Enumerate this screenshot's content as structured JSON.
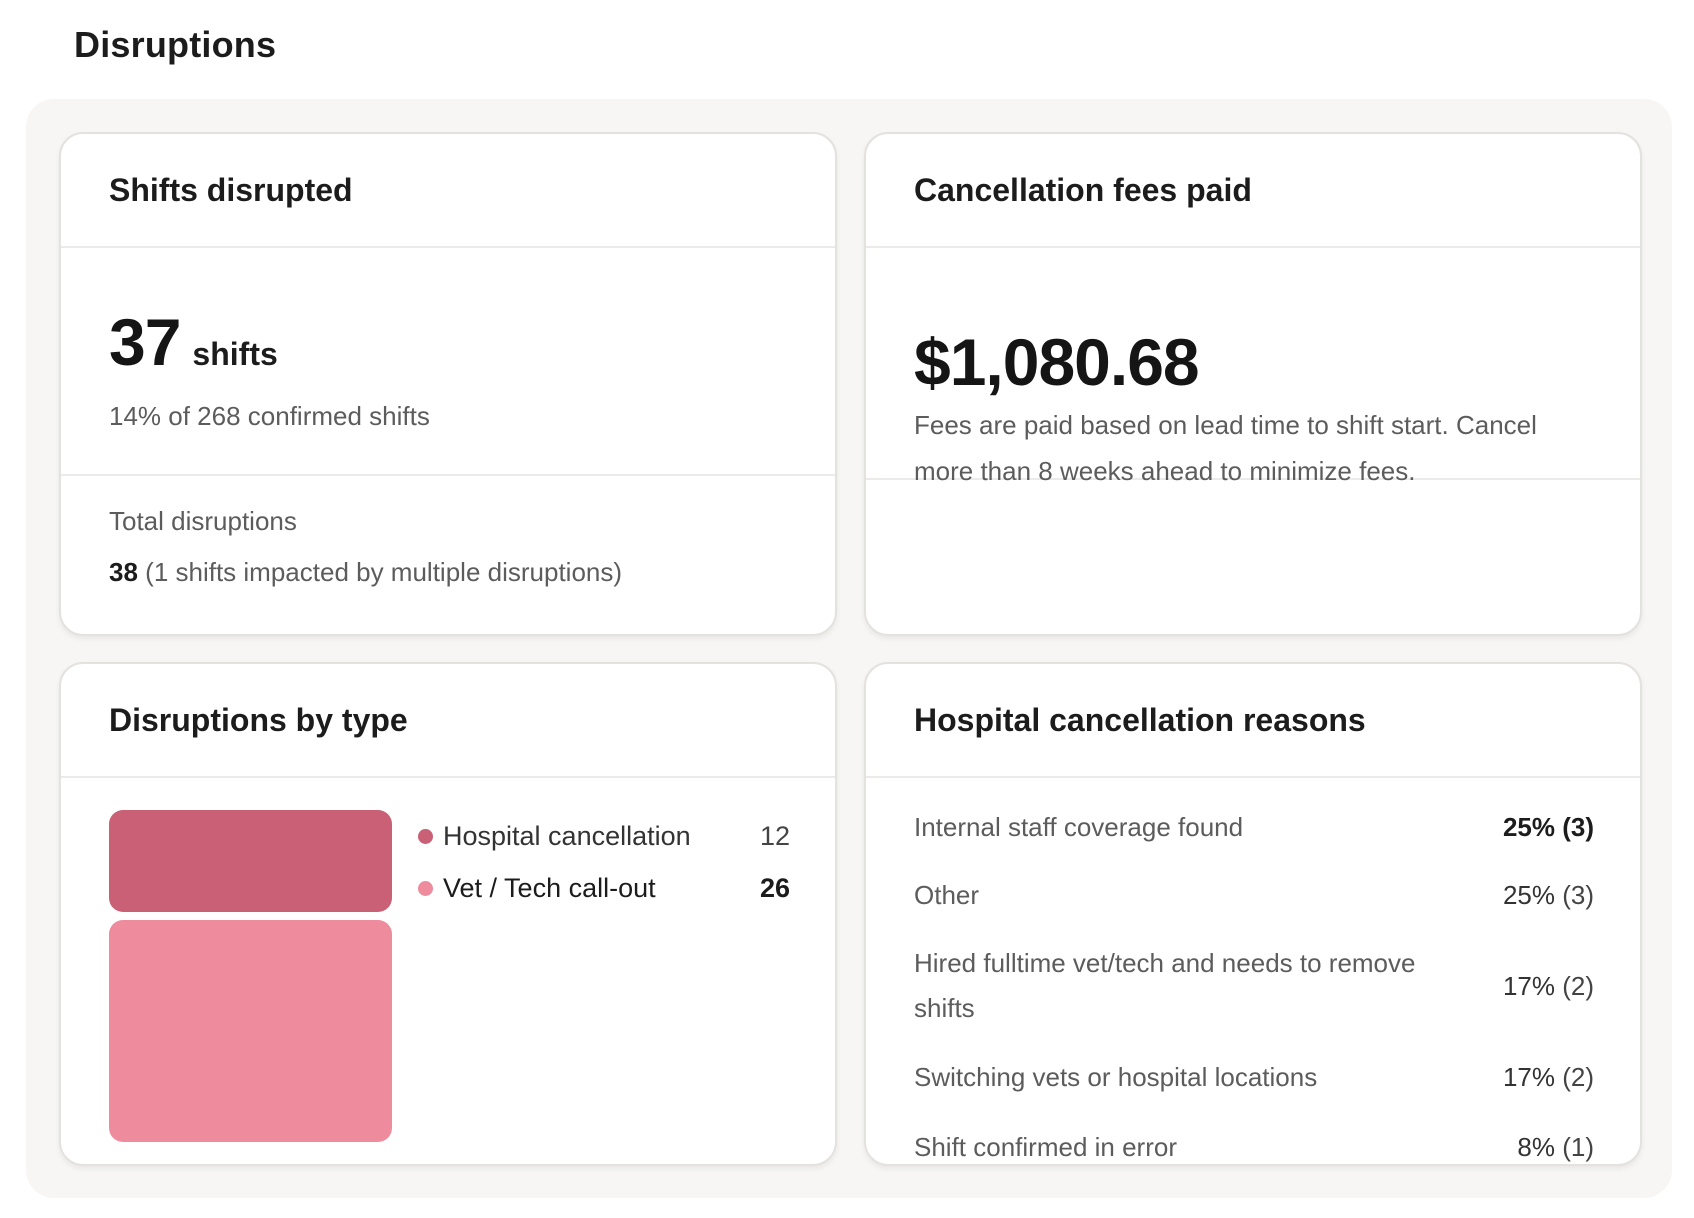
{
  "page": {
    "title": "Disruptions"
  },
  "shifts_card": {
    "title": "Shifts disrupted",
    "value": "37",
    "unit": "shifts",
    "subtitle": "14% of 268 confirmed shifts",
    "total_label": "Total disruptions",
    "total_value": "38",
    "total_note": "(1 shifts impacted by multiple disruptions)"
  },
  "fees_card": {
    "title": "Cancellation fees paid",
    "value": "$1,080.68",
    "note": "Fees are paid based on lead time to shift start. Cancel more than 8 weeks ahead to minimize fees."
  },
  "types_card": {
    "title": "Disruptions by type",
    "items": [
      {
        "label": "Hospital cancellation",
        "count": "12",
        "value": 12,
        "color": "#c96075"
      },
      {
        "label": "Vet / Tech call-out",
        "count": "26",
        "value": 26,
        "color": "#ee8c9e"
      }
    ]
  },
  "reasons_card": {
    "title": "Hospital cancellation reasons",
    "items": [
      {
        "label": "Internal staff coverage found",
        "pct": "25%",
        "count": "(3)"
      },
      {
        "label": "Other",
        "pct": "25%",
        "count": "(3)"
      },
      {
        "label": "Hired fulltime vet/tech and needs to remove shifts",
        "pct": "17%",
        "count": "(2)"
      },
      {
        "label": "Switching vets or hospital locations",
        "pct": "17%",
        "count": "(2)"
      },
      {
        "label": "Shift confirmed in error",
        "pct": "8%",
        "count": "(1)"
      }
    ]
  }
}
